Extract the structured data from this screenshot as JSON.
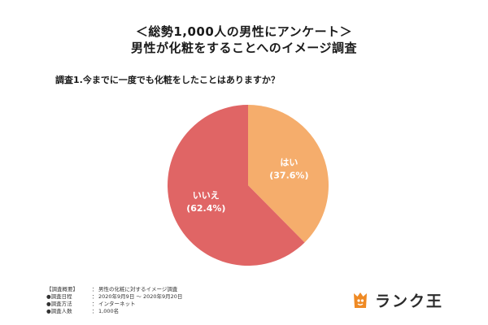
{
  "header": {
    "title_line1": "＜総勢1,000人の男性にアンケート＞",
    "title_line2": "男性が化粧をすることへのイメージ調査"
  },
  "question": "調査1.今までに一度でも化粧をしたことはありますか？",
  "chart_data": {
    "type": "pie",
    "slices": [
      {
        "label": "はい",
        "value": 37.6,
        "value_label": "(37.6%)",
        "color": "#f5ad6c"
      },
      {
        "label": "いいえ",
        "value": 62.4,
        "value_label": "(62.4%)",
        "color": "#e06565"
      }
    ],
    "start": "12 o'clock",
    "direction": "clockwise"
  },
  "footer": {
    "heading": "【調査概要】",
    "heading_value": "男性の化粧に対するイメージ調査",
    "rows": [
      {
        "key": "●調査日程",
        "value": "2020年9月9日 〜 2020年9月20日"
      },
      {
        "key": "●調査方法",
        "value": "インターネット"
      },
      {
        "key": "●調査人数",
        "value": "1,000名"
      }
    ],
    "separator": "："
  },
  "logo": {
    "text": "ランク王",
    "icon": "rank-king-mascot-icon",
    "icon_color": "#ef8a24"
  }
}
